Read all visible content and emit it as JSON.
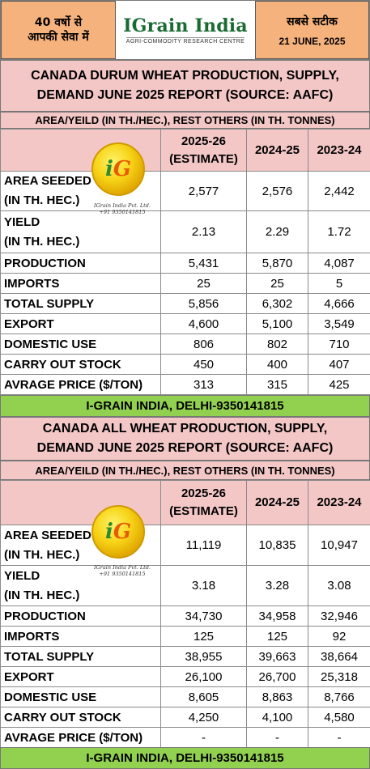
{
  "header": {
    "left_line1": "40 वर्षो से",
    "left_line2": "आपकी सेवा में",
    "brand": "IGrain India",
    "brand_sub": "AGRI-COMMODITY RESEARCH CENTRE",
    "right_line1": "सबसे सटीक",
    "date": "21 JUNE, 2025"
  },
  "logo": {
    "mark_i": "i",
    "mark_g": "G",
    "caption_line1": "IGrain India Pvt. Ltd.",
    "caption_line2": "+91 9350141815"
  },
  "sections": [
    {
      "title_line1": "CANADA DURUM WHEAT PRODUCTION, SUPPLY,",
      "title_line2": "DEMAND JUNE 2025 REPORT (SOURCE: AAFC)",
      "subheader": "AREA/YEILD (IN TH./HEC.), REST OTHERS (IN TH. TONNES)",
      "columns": [
        "2025-26",
        "(ESTIMATE)",
        "2024-25",
        "2023-24"
      ],
      "rows": [
        {
          "label1": "AREA SEEDED",
          "label2": "(IN TH. HEC.)",
          "values": [
            "2,577",
            "2,576",
            "2,442"
          ]
        },
        {
          "label1": "YIELD",
          "label2": "(IN TH. HEC.)",
          "values": [
            "2.13",
            "2.29",
            "1.72"
          ]
        },
        {
          "label1": "PRODUCTION",
          "label2": "",
          "values": [
            "5,431",
            "5,870",
            "4,087"
          ]
        },
        {
          "label1": "IMPORTS",
          "label2": "",
          "values": [
            "25",
            "25",
            "5"
          ]
        },
        {
          "label1": "TOTAL SUPPLY",
          "label2": "",
          "values": [
            "5,856",
            "6,302",
            "4,666"
          ]
        },
        {
          "label1": "EXPORT",
          "label2": "",
          "values": [
            "4,600",
            "5,100",
            "3,549"
          ]
        },
        {
          "label1": "DOMESTIC USE",
          "label2": "",
          "values": [
            "806",
            "802",
            "710"
          ]
        },
        {
          "label1": "CARRY OUT STOCK",
          "label2": "",
          "values": [
            "450",
            "400",
            "407"
          ]
        },
        {
          "label1": "AVRAGE PRICE ($/TON)",
          "label2": "",
          "values": [
            "313",
            "315",
            "425"
          ]
        }
      ],
      "footer": "I-GRAIN INDIA, DELHI-9350141815"
    },
    {
      "title_line1": "CANADA ALL WHEAT PRODUCTION, SUPPLY,",
      "title_line2": "DEMAND JUNE 2025 REPORT (SOURCE: AAFC)",
      "subheader": "AREA/YEILD (IN TH./HEC.), REST OTHERS (IN TH. TONNES)",
      "columns": [
        "2025-26",
        "(ESTIMATE)",
        "2024-25",
        "2023-24"
      ],
      "rows": [
        {
          "label1": "AREA SEEDED",
          "label2": "(IN TH. HEC.)",
          "values": [
            "11,119",
            "10,835",
            "10,947"
          ]
        },
        {
          "label1": "YIELD",
          "label2": "(IN TH. HEC.)",
          "values": [
            "3.18",
            "3.28",
            "3.08"
          ]
        },
        {
          "label1": "PRODUCTION",
          "label2": "",
          "values": [
            "34,730",
            "34,958",
            "32,946"
          ]
        },
        {
          "label1": "IMPORTS",
          "label2": "",
          "values": [
            "125",
            "125",
            "92"
          ]
        },
        {
          "label1": "TOTAL SUPPLY",
          "label2": "",
          "values": [
            "38,955",
            "39,663",
            "38,664"
          ]
        },
        {
          "label1": "EXPORT",
          "label2": "",
          "values": [
            "26,100",
            "26,700",
            "25,318"
          ]
        },
        {
          "label1": "DOMESTIC USE",
          "label2": "",
          "values": [
            "8,605",
            "8,863",
            "8,766"
          ]
        },
        {
          "label1": "CARRY OUT STOCK",
          "label2": "",
          "values": [
            "4,250",
            "4,100",
            "4,580"
          ]
        },
        {
          "label1": "AVRAGE PRICE ($/TON)",
          "label2": "",
          "values": [
            "-",
            "-",
            "-"
          ]
        }
      ],
      "footer": "I-GRAIN INDIA, DELHI-9350141815"
    }
  ]
}
